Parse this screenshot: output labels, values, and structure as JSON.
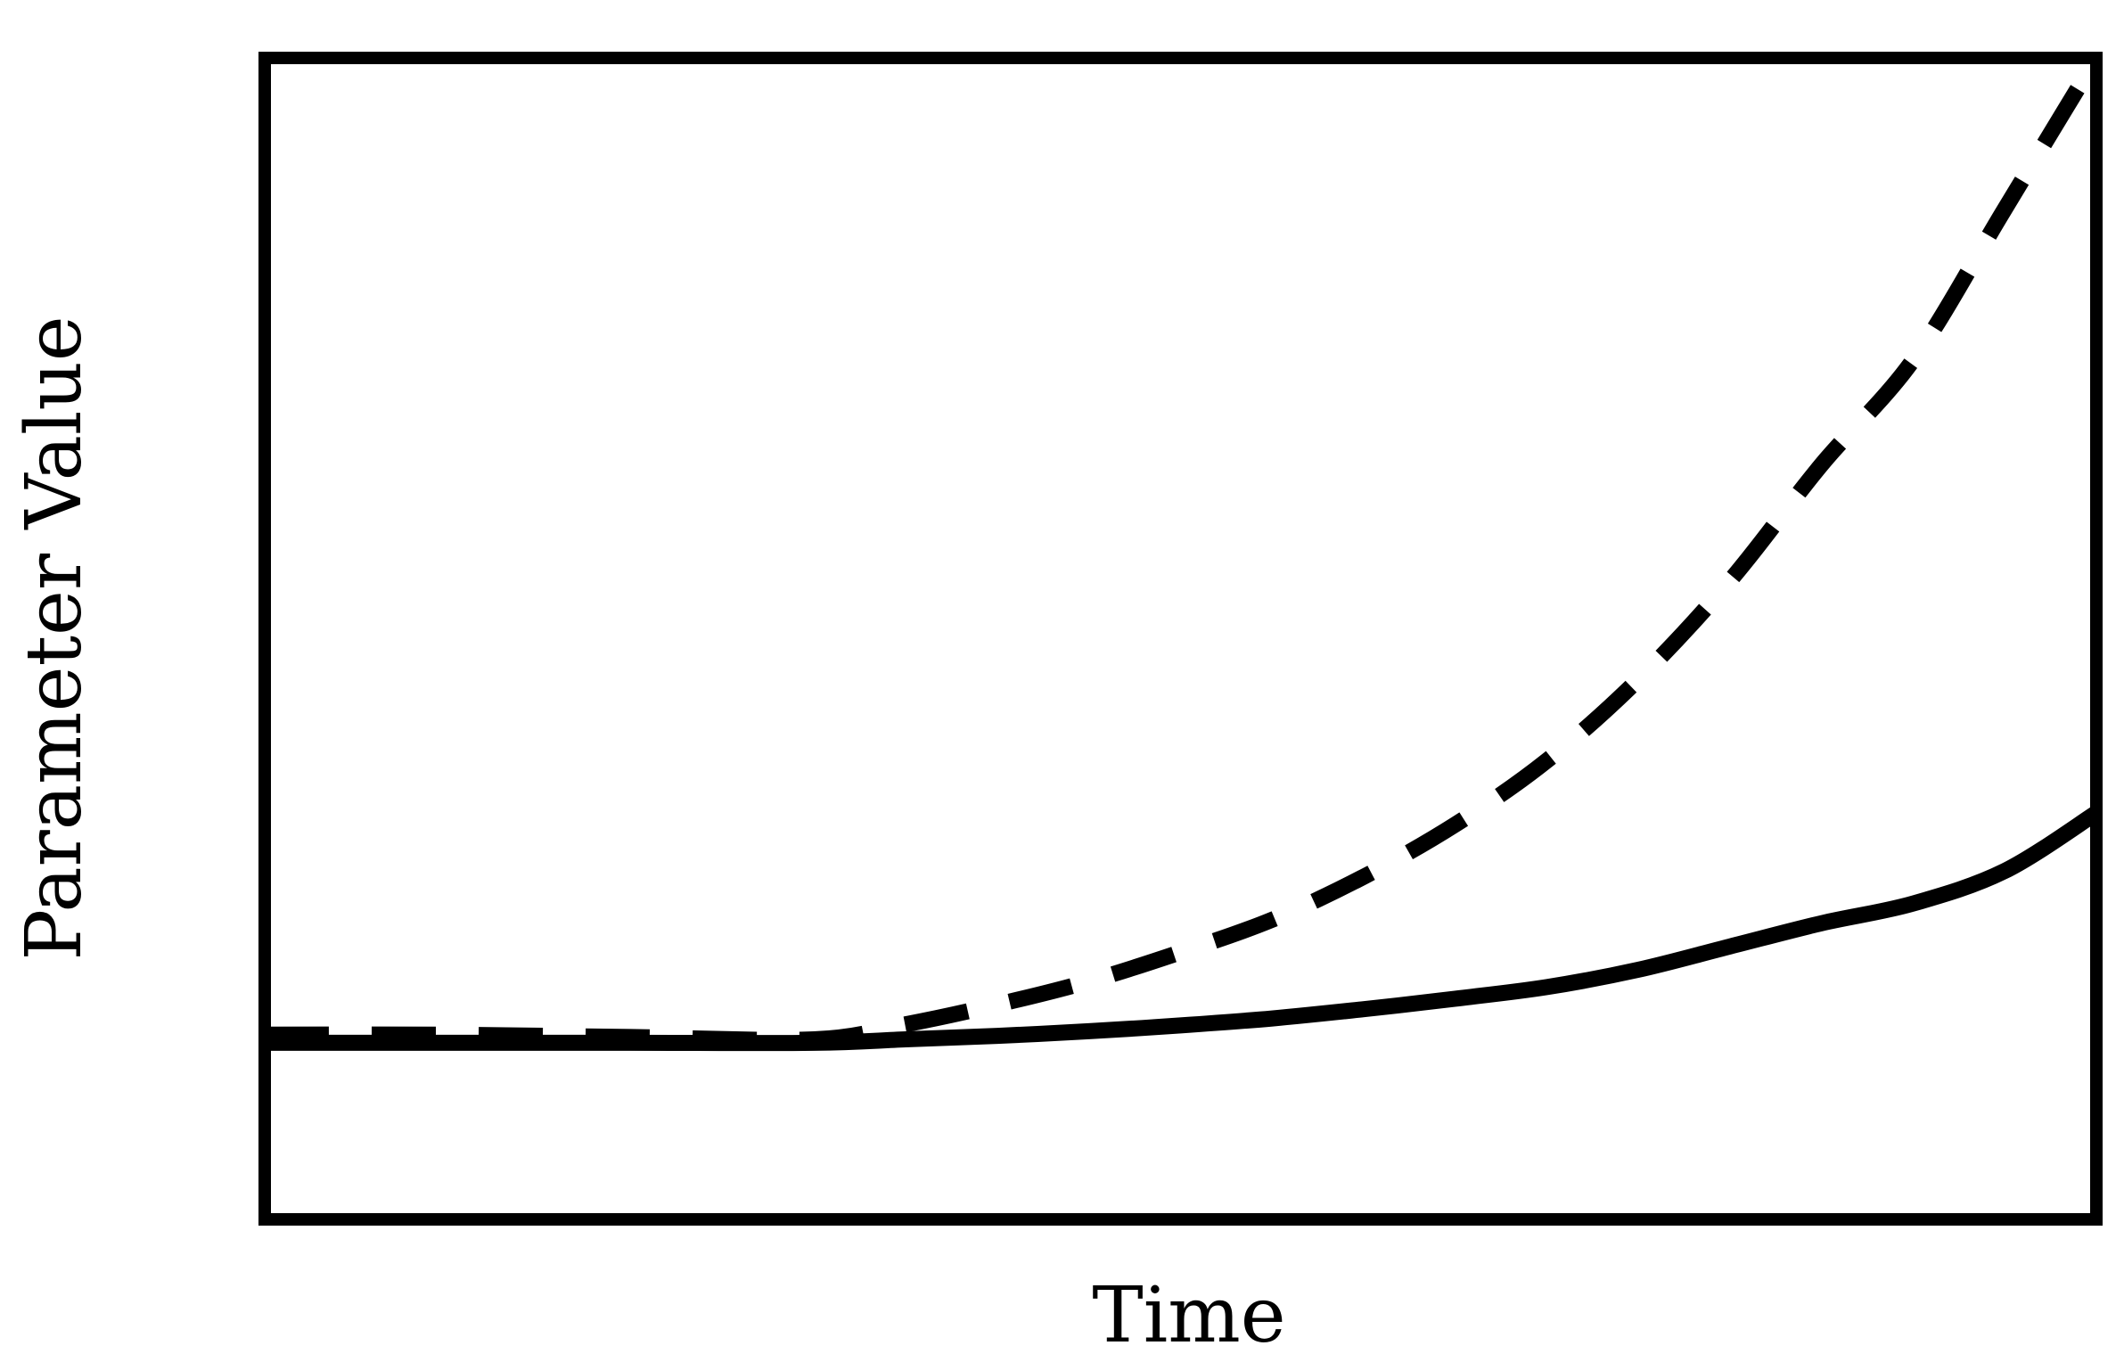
{
  "chart_data": {
    "type": "line",
    "title": "",
    "xlabel": "Time",
    "ylabel": "Parameter Value",
    "xlim": [
      0,
      1
    ],
    "ylim": [
      0,
      1
    ],
    "grid": false,
    "legend": "none",
    "series": [
      {
        "style": "dashed",
        "color": "#000000",
        "x": [
          0.0,
          0.1,
          0.2,
          0.3,
          0.35,
          0.4,
          0.45,
          0.5,
          0.55,
          0.6,
          0.65,
          0.7,
          0.75,
          0.8,
          0.85,
          0.9,
          0.95,
          1.0
        ],
        "y": [
          0.159,
          0.159,
          0.157,
          0.155,
          0.168,
          0.185,
          0.205,
          0.23,
          0.258,
          0.295,
          0.34,
          0.395,
          0.465,
          0.55,
          0.65,
          0.74,
          0.87,
          1.0
        ]
      },
      {
        "style": "solid",
        "color": "#000000",
        "x": [
          0.0,
          0.1,
          0.2,
          0.3,
          0.35,
          0.4,
          0.45,
          0.5,
          0.55,
          0.6,
          0.65,
          0.7,
          0.75,
          0.8,
          0.85,
          0.9,
          0.95,
          1.0
        ],
        "y": [
          0.152,
          0.152,
          0.152,
          0.152,
          0.155,
          0.158,
          0.162,
          0.167,
          0.173,
          0.181,
          0.19,
          0.2,
          0.215,
          0.235,
          0.255,
          0.272,
          0.3,
          0.35
        ]
      }
    ]
  }
}
